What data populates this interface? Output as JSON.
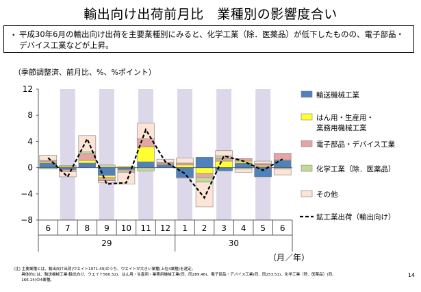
{
  "title": "輸出向け出荷前月比　業種別の影響度合い",
  "summary": {
    "bullet": "・",
    "text": "平成30年6月の輸出向け出荷を主要業種別にみると、化学工業（除．医薬品）が低下したものの、電子部品・デバイス工業などが上昇。"
  },
  "unit_note": "（季節調整済、前月比、%、%ポイント）",
  "footnote": {
    "line1": "(注) 主要業種とは、輸出向け出荷(ウエイト1971.49)のうち、ウエイトが大きい業種(上位4業種)を選定。",
    "line2": "　　具体的には、輸送機械工業(輸出向け、ウエイト560.52)、はん用・生産用・業務用機械工業(同、同289.48)、電子部品・デバイス工業(同、同253.51)、化学工業（除．医薬品）(同、",
    "line3": "　　166.14)の4業種。"
  },
  "page_number": "14",
  "chart_data": {
    "type": "bar",
    "stacked": true,
    "categories": [
      "6",
      "7",
      "8",
      "9",
      "10",
      "11",
      "12",
      "1",
      "2",
      "3",
      "4",
      "5",
      "6"
    ],
    "year_labels": [
      {
        "label": "29",
        "from": 0,
        "to": 6
      },
      {
        "label": "30",
        "from": 7,
        "to": 12
      }
    ],
    "x_unit": "（月／年）",
    "ylim": [
      -8,
      12
    ],
    "yticks": [
      -8,
      -4,
      0,
      4,
      8,
      12
    ],
    "ytick_labels": [
      "−8",
      "−4",
      "0",
      "4",
      "8",
      "12"
    ],
    "shaded_categories": [
      1,
      3,
      5,
      7,
      9,
      11
    ],
    "series": [
      {
        "name": "輸送機械工業",
        "color": "#4F81BD",
        "values": [
          0.7,
          -0.3,
          0.7,
          -1.2,
          -0.3,
          0.9,
          0.4,
          -1.5,
          1.6,
          -0.5,
          0.7,
          -1.4,
          1.1
        ]
      },
      {
        "name": "はん用・生産用・\n業務用機械工業",
        "color": "#FFFF33",
        "values": [
          0.2,
          0.2,
          0.4,
          -0.3,
          0.2,
          2.3,
          0.1,
          0.4,
          -0.9,
          1.0,
          0.3,
          0.2,
          0.1
        ]
      },
      {
        "name": "電子部品・デバイス工業",
        "color": "#E6A5A5",
        "values": [
          0.2,
          -0.3,
          1.0,
          -0.5,
          -0.2,
          1.2,
          0.2,
          0.3,
          -0.6,
          0.4,
          0.4,
          0.3,
          1.0
        ]
      },
      {
        "name": "化学工業（除．医薬品）",
        "color": "#C4D89A",
        "values": [
          -0.2,
          0.1,
          0.3,
          0.4,
          -0.2,
          -0.5,
          0.1,
          -0.1,
          -0.7,
          0.4,
          -0.2,
          0.1,
          -0.2
        ]
      },
      {
        "name": "その他",
        "color": "#FCE4D6",
        "values": [
          0.8,
          -0.8,
          2.5,
          -0.3,
          -1.8,
          2.4,
          0.5,
          0.8,
          -3.8,
          0.8,
          -0.5,
          0.4,
          -0.9
        ]
      }
    ],
    "line": {
      "name": "鉱工業出荷（輸出向け）",
      "values": [
        1.5,
        -1.4,
        4.4,
        -2.5,
        -2.3,
        5.8,
        0.9,
        -0.9,
        -4.6,
        1.8,
        1.0,
        -0.4,
        1.3
      ]
    }
  },
  "colors": {
    "shade": "#DCD8EA",
    "bar_border": "#7F7F7F",
    "line": "#000000",
    "axis": "#595959"
  }
}
